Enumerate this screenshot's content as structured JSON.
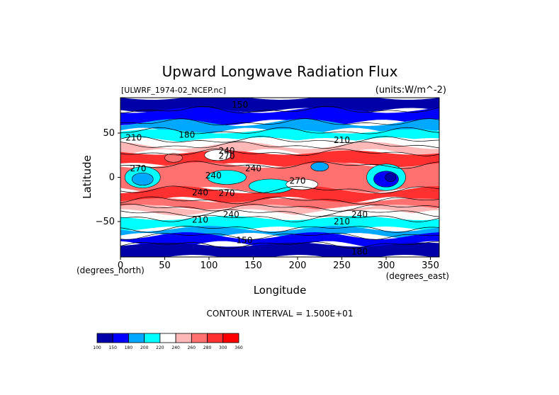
{
  "chart_data": {
    "type": "heatmap",
    "title": "Upward Longwave Radiation Flux",
    "source_label": "[ULWRF_1974-02_NCEP.nc]",
    "units_label": "(units:W/m^-2)",
    "xlabel": "Longitude",
    "ylabel": "Latitude",
    "x_unit_label": "(degrees_east)",
    "y_unit_label": "(degrees_north)",
    "xlim": [
      0,
      360
    ],
    "ylim": [
      -90,
      90
    ],
    "x_ticks": [
      0,
      50,
      100,
      150,
      200,
      250,
      300,
      350
    ],
    "y_ticks": [
      -50,
      0,
      50
    ],
    "contour_interval_text": "CONTOUR INTERVAL = 1.500E+01",
    "contour_labels": [
      {
        "text": "150",
        "x": 135,
        "y": 82
      },
      {
        "text": "210",
        "x": 15,
        "y": 45
      },
      {
        "text": "180",
        "x": 75,
        "y": 48
      },
      {
        "text": "240",
        "x": 120,
        "y": 30
      },
      {
        "text": "270",
        "x": 120,
        "y": 24
      },
      {
        "text": "210",
        "x": 250,
        "y": 42
      },
      {
        "text": "270",
        "x": 20,
        "y": 10
      },
      {
        "text": "240",
        "x": 105,
        "y": 2
      },
      {
        "text": "240",
        "x": 150,
        "y": 10
      },
      {
        "text": "270",
        "x": 200,
        "y": -4
      },
      {
        "text": "240",
        "x": 90,
        "y": -17
      },
      {
        "text": "270",
        "x": 120,
        "y": -18
      },
      {
        "text": "240",
        "x": 125,
        "y": -42
      },
      {
        "text": "210",
        "x": 90,
        "y": -48
      },
      {
        "text": "240",
        "x": 270,
        "y": -42
      },
      {
        "text": "210",
        "x": 250,
        "y": -50
      },
      {
        "text": "150",
        "x": 140,
        "y": -71
      },
      {
        "text": "180",
        "x": 270,
        "y": -84
      }
    ],
    "colorbar": {
      "levels": [
        100,
        150,
        180,
        200,
        220,
        240,
        260,
        280,
        300,
        360
      ],
      "colors": [
        "#0000a8",
        "#0000ff",
        "#00a8ff",
        "#00ffff",
        "#ffffff",
        "#ffb8b8",
        "#ff7070",
        "#ff3030",
        "#ff0000"
      ]
    }
  }
}
